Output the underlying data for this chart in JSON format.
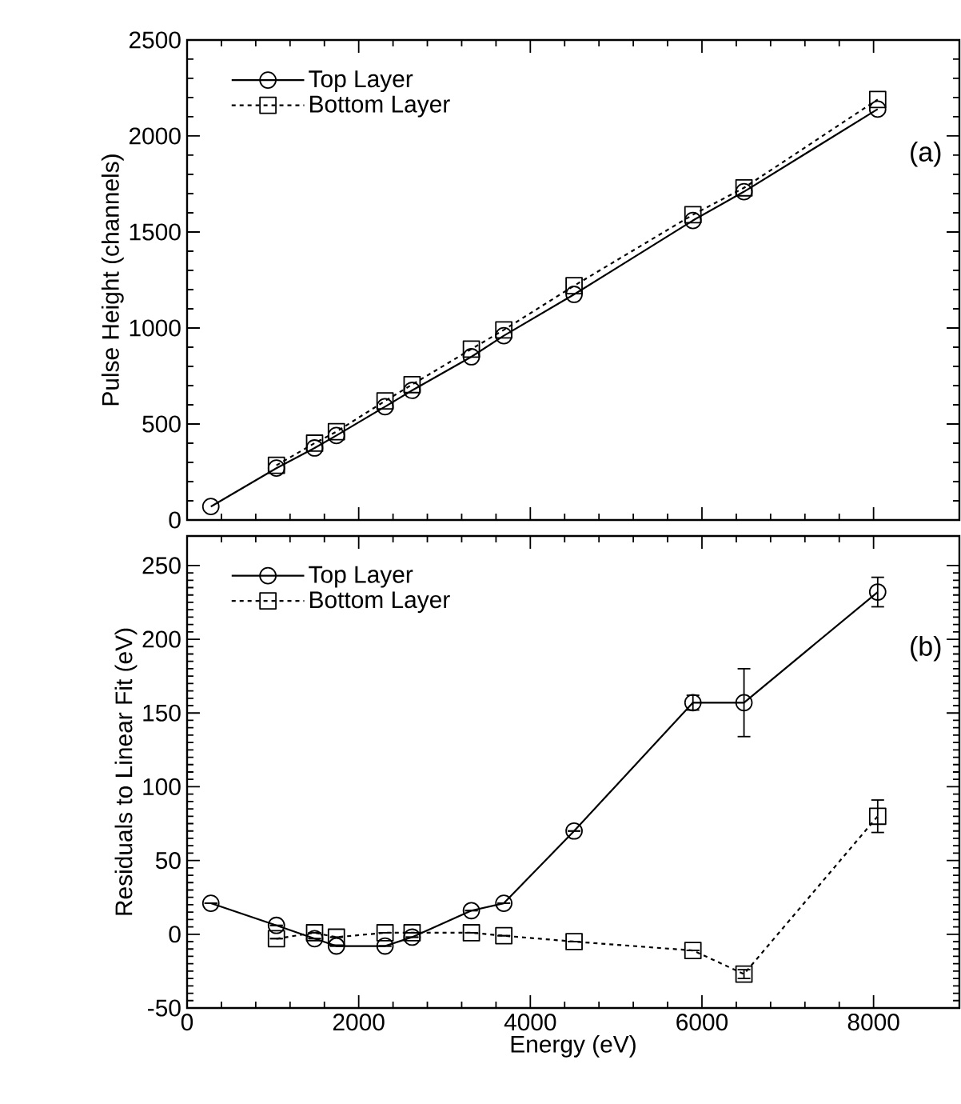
{
  "chart_data": [
    {
      "type": "line",
      "ylabel": "Pulse Height (channels)",
      "annotations": [
        "(a)"
      ],
      "xlim": [
        0,
        9000
      ],
      "xticks": [
        0,
        2000,
        4000,
        6000,
        8000
      ],
      "ylim": [
        0,
        2500
      ],
      "yticks": [
        0,
        500,
        1000,
        1500,
        2000,
        2500
      ],
      "tick_labels": "y",
      "legend": "top left",
      "grid": false,
      "series": [
        {
          "name": "Top Layer",
          "color": "#000000",
          "marker": "circle",
          "line_style": "solid",
          "x": [
            277,
            1041,
            1486,
            1740,
            2307,
            2622,
            3313,
            3691,
            4510,
            5895,
            6490,
            8048
          ],
          "values": [
            70,
            270,
            375,
            440,
            590,
            675,
            850,
            960,
            1175,
            1560,
            1710,
            2140
          ]
        },
        {
          "name": "Bottom Layer",
          "color": "#000000",
          "marker": "square",
          "line_style": "dashed",
          "x": [
            1041,
            1486,
            1740,
            2307,
            2622,
            3313,
            3691,
            4510,
            5895,
            6490,
            8048
          ],
          "values": [
            285,
            400,
            460,
            620,
            705,
            890,
            990,
            1220,
            1590,
            1730,
            2190
          ]
        }
      ]
    },
    {
      "type": "line",
      "xlabel": "Energy (eV)",
      "ylabel": "Residuals to Linear Fit (eV)",
      "annotations": [
        "(b)"
      ],
      "xlim": [
        0,
        9000
      ],
      "xticks": [
        0,
        2000,
        4000,
        6000,
        8000
      ],
      "ylim": [
        -50,
        270
      ],
      "yticks": [
        -50,
        0,
        50,
        100,
        150,
        200,
        250
      ],
      "legend": "top left",
      "grid": false,
      "series": [
        {
          "name": "Top Layer",
          "color": "#000000",
          "marker": "circle",
          "line_style": "solid",
          "x": [
            277,
            1041,
            1486,
            1740,
            2307,
            2622,
            3313,
            3691,
            4510,
            5895,
            6490,
            8048
          ],
          "values": [
            21,
            6,
            -3,
            -8,
            -8,
            -2,
            16,
            21,
            70,
            157,
            157,
            232
          ],
          "errors": [
            null,
            null,
            null,
            null,
            null,
            null,
            null,
            null,
            null,
            5,
            23,
            10
          ]
        },
        {
          "name": "Bottom Layer",
          "color": "#000000",
          "marker": "square",
          "line_style": "dashed",
          "x": [
            1041,
            1486,
            1740,
            2307,
            2622,
            3313,
            3691,
            4510,
            5895,
            6490,
            8048
          ],
          "values": [
            -3,
            1,
            -2,
            1,
            1,
            1,
            -1,
            -5,
            -11,
            -27,
            80
          ],
          "errors": [
            null,
            null,
            null,
            null,
            null,
            null,
            null,
            null,
            null,
            3,
            11
          ]
        }
      ]
    }
  ]
}
